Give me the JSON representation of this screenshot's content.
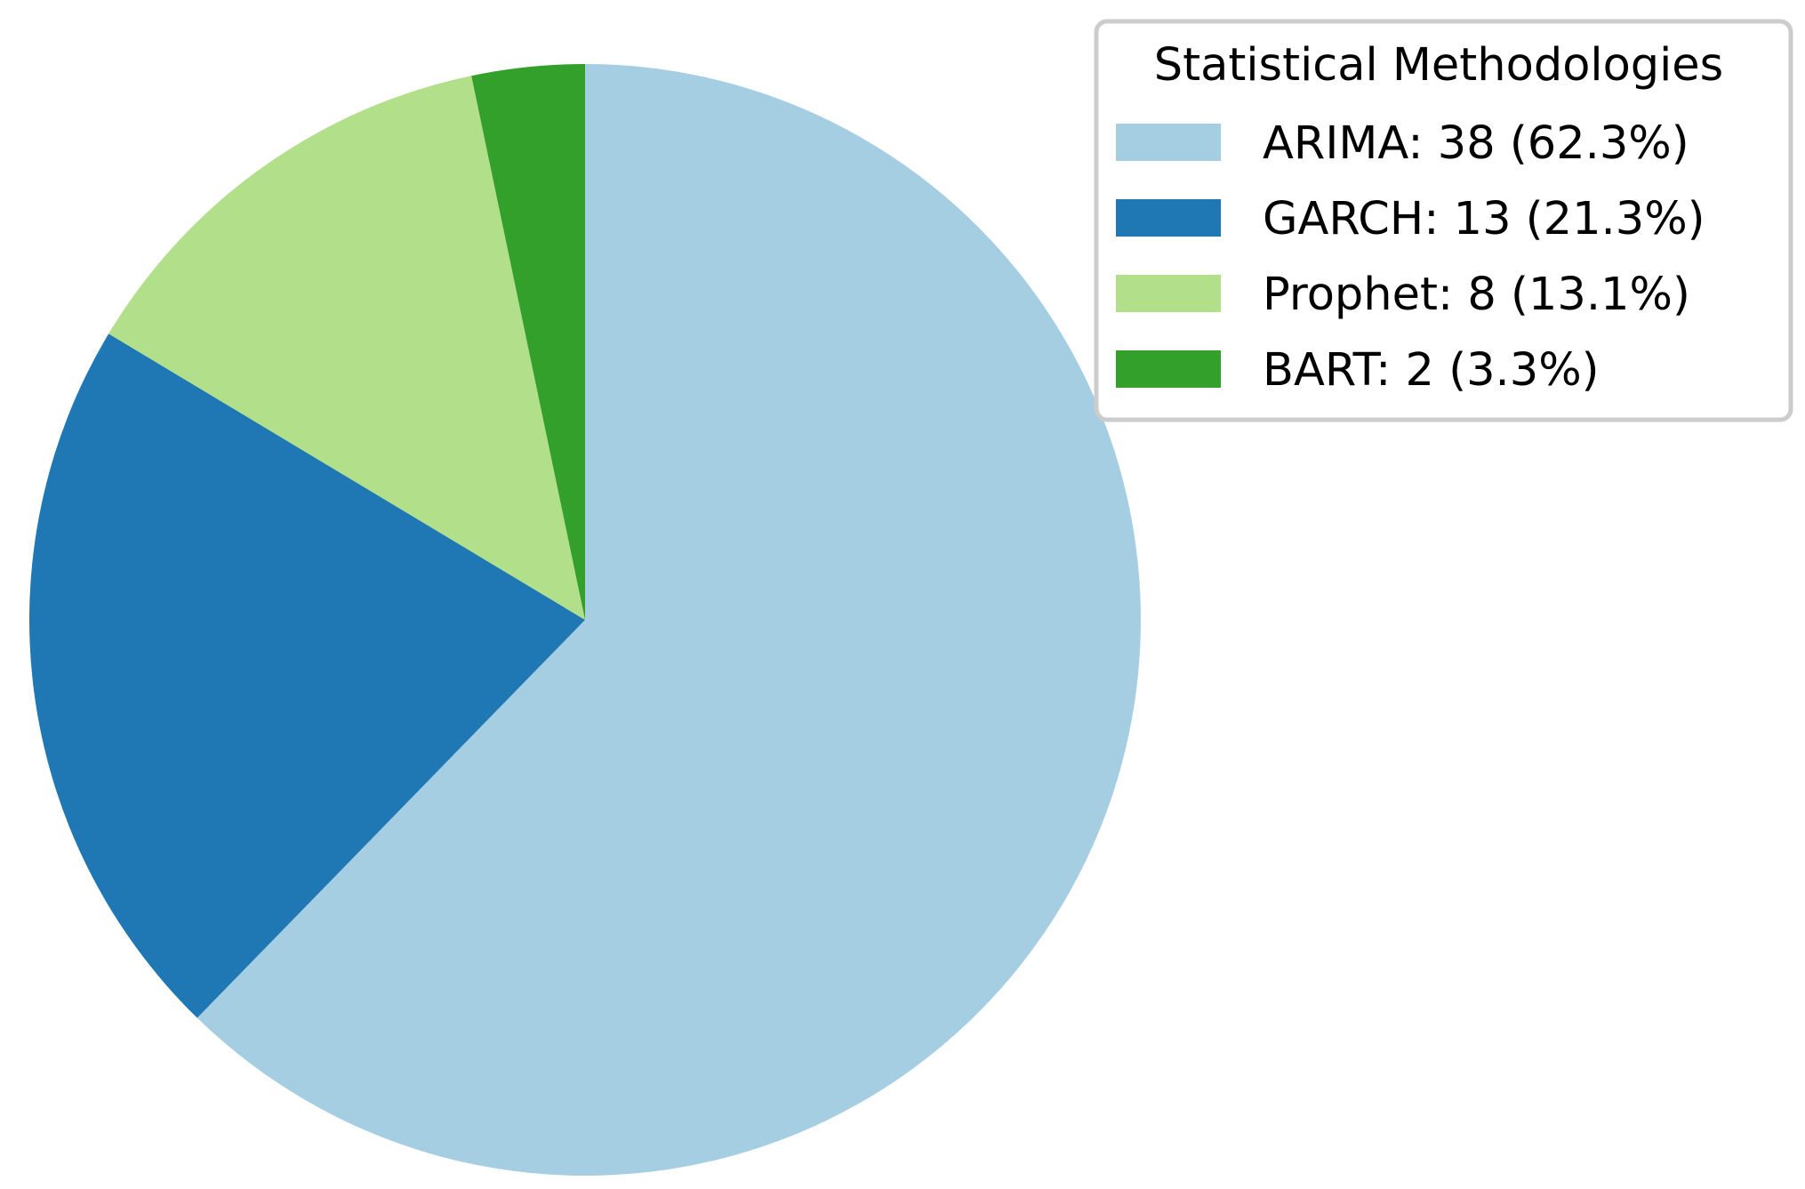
{
  "chart_data": {
    "type": "pie",
    "legend_title": "Statistical Methodologies",
    "legend_placement": "top-right",
    "start_angle_deg": 90,
    "direction": "clockwise",
    "slices": [
      {
        "name": "ARIMA",
        "value": 38,
        "percent": 62.3,
        "label": "ARIMA: 38 (62.3%)",
        "color": "#a6cee3"
      },
      {
        "name": "GARCH",
        "value": 13,
        "percent": 21.3,
        "label": "GARCH: 13 (21.3%)",
        "color": "#1f78b4"
      },
      {
        "name": "Prophet",
        "value": 8,
        "percent": 13.1,
        "label": "Prophet: 8 (13.1%)",
        "color": "#b2df8a"
      },
      {
        "name": "BART",
        "value": 2,
        "percent": 3.3,
        "label": "BART: 2 (3.3%)",
        "color": "#33a02c"
      }
    ]
  }
}
